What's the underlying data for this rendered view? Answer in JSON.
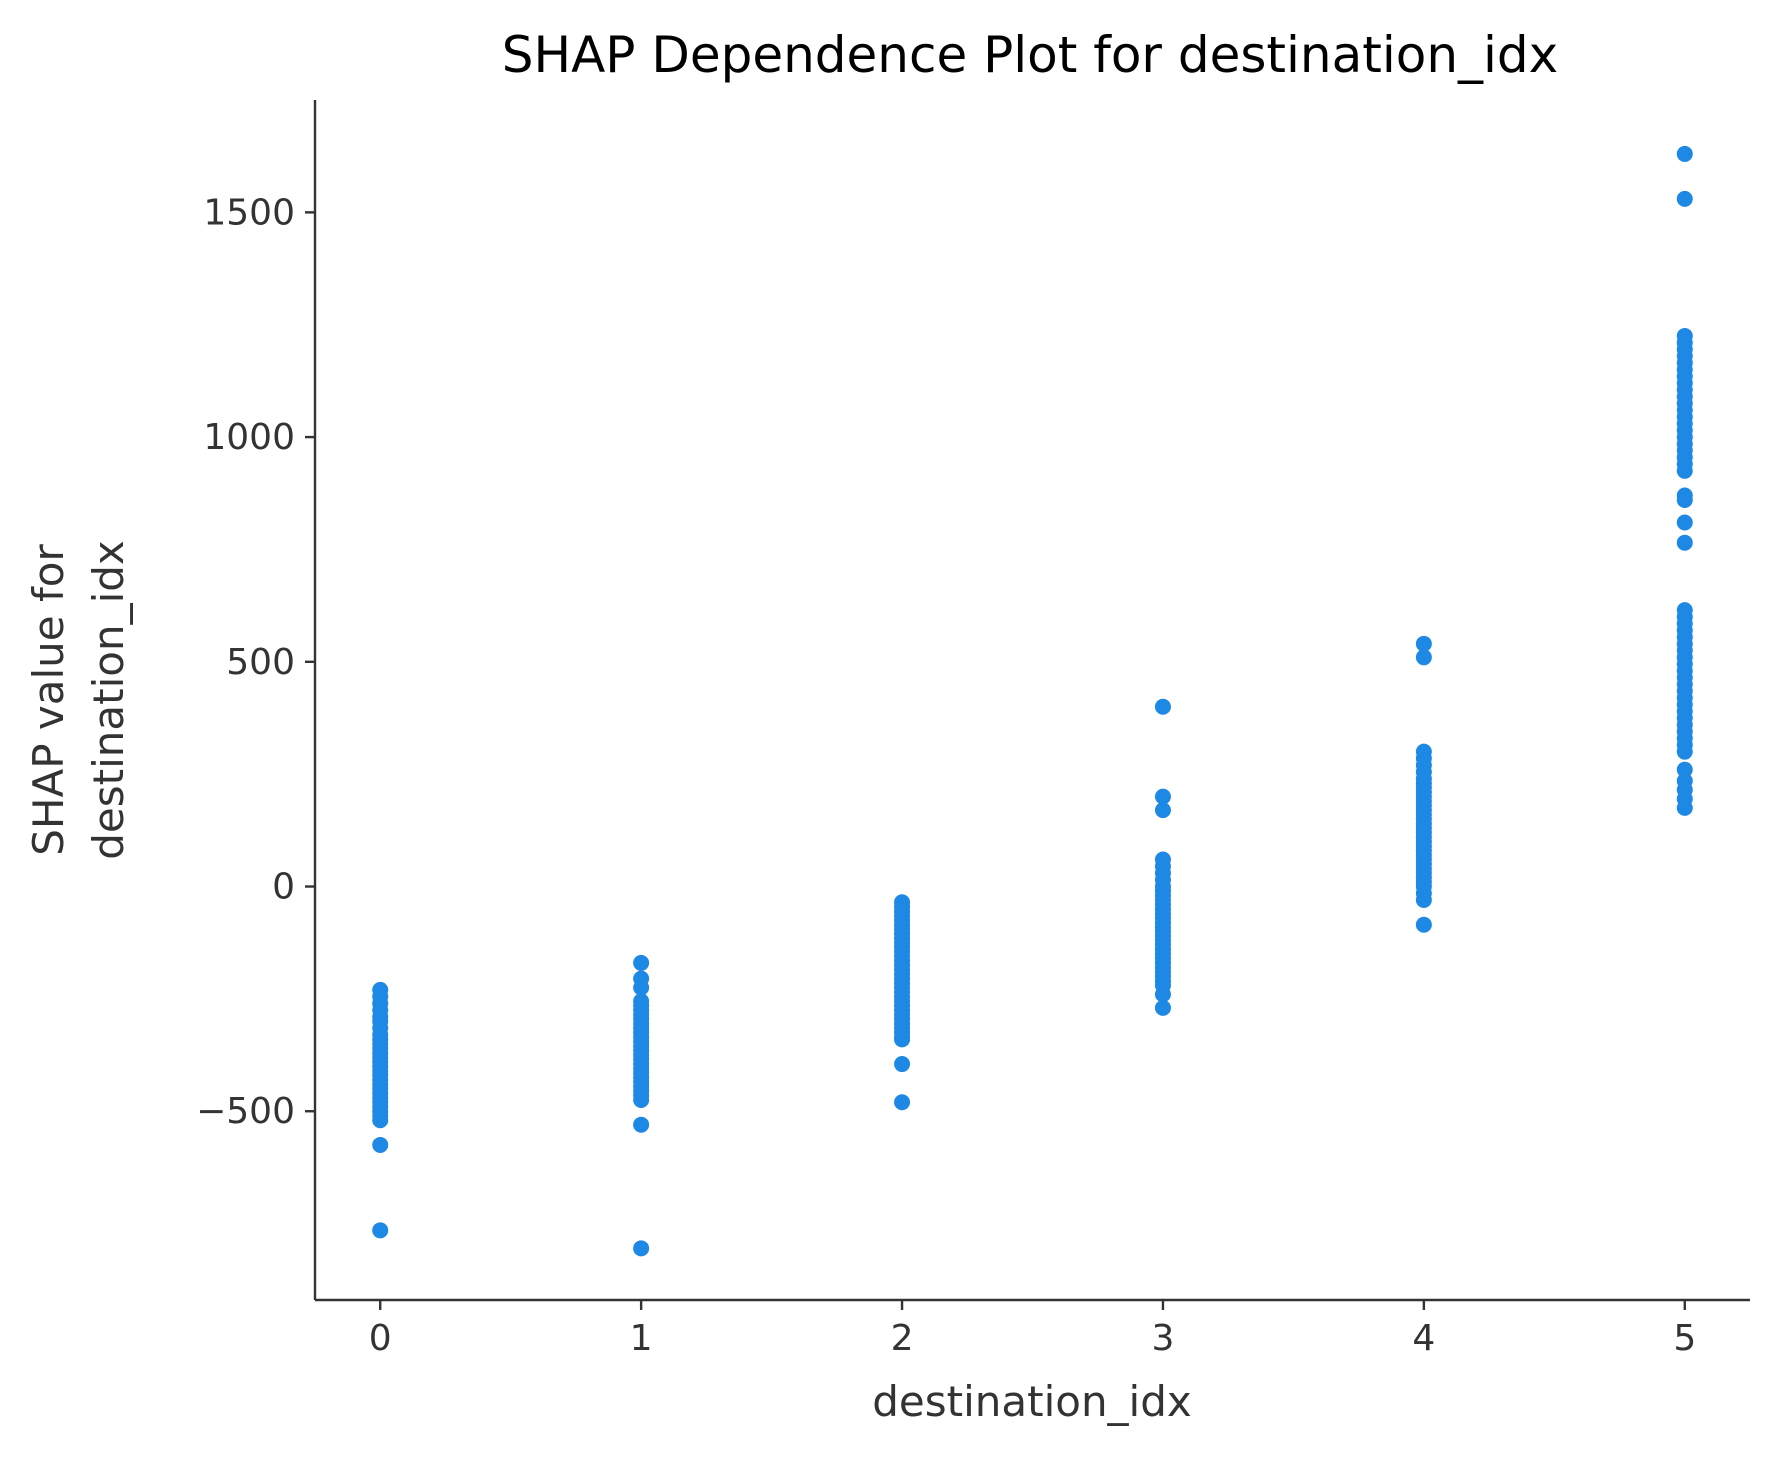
{
  "chart_data": {
    "type": "scatter",
    "title": "SHAP Dependence Plot for destination_idx",
    "xlabel": "destination_idx",
    "ylabel_lines": [
      "SHAP value for",
      "destination_idx"
    ],
    "xlim": [
      -0.25,
      5.25
    ],
    "ylim": [
      -920,
      1750
    ],
    "x_ticks": [
      0,
      1,
      2,
      3,
      4,
      5
    ],
    "x_tick_labels": [
      "0",
      "1",
      "2",
      "3",
      "4",
      "5"
    ],
    "y_ticks": [
      -500,
      0,
      500,
      1000,
      1500
    ],
    "y_tick_labels": [
      "−500",
      "0",
      "500",
      "1000",
      "1500"
    ],
    "grid": false,
    "point_color": "#1e88e5",
    "series": [
      {
        "points": [
          [
            0,
            -230
          ],
          [
            0,
            -245
          ],
          [
            0,
            -260
          ],
          [
            0,
            -275
          ],
          [
            0,
            -290
          ],
          [
            0,
            -300
          ],
          [
            0,
            -315
          ],
          [
            0,
            -330
          ],
          [
            0,
            -340
          ],
          [
            0,
            -350
          ],
          [
            0,
            -360
          ],
          [
            0,
            -370
          ],
          [
            0,
            -380
          ],
          [
            0,
            -390
          ],
          [
            0,
            -400
          ],
          [
            0,
            -410
          ],
          [
            0,
            -420
          ],
          [
            0,
            -430
          ],
          [
            0,
            -440
          ],
          [
            0,
            -450
          ],
          [
            0,
            -460
          ],
          [
            0,
            -470
          ],
          [
            0,
            -480
          ],
          [
            0,
            -490
          ],
          [
            0,
            -500
          ],
          [
            0,
            -510
          ],
          [
            0,
            -520
          ],
          [
            0,
            -575
          ],
          [
            0,
            -765
          ],
          [
            1,
            -170
          ],
          [
            1,
            -205
          ],
          [
            1,
            -225
          ],
          [
            1,
            -255
          ],
          [
            1,
            -265
          ],
          [
            1,
            -275
          ],
          [
            1,
            -285
          ],
          [
            1,
            -295
          ],
          [
            1,
            -305
          ],
          [
            1,
            -315
          ],
          [
            1,
            -325
          ],
          [
            1,
            -335
          ],
          [
            1,
            -345
          ],
          [
            1,
            -355
          ],
          [
            1,
            -365
          ],
          [
            1,
            -375
          ],
          [
            1,
            -385
          ],
          [
            1,
            -395
          ],
          [
            1,
            -405
          ],
          [
            1,
            -415
          ],
          [
            1,
            -425
          ],
          [
            1,
            -435
          ],
          [
            1,
            -445
          ],
          [
            1,
            -455
          ],
          [
            1,
            -465
          ],
          [
            1,
            -475
          ],
          [
            1,
            -530
          ],
          [
            1,
            -805
          ],
          [
            2,
            -35
          ],
          [
            2,
            -45
          ],
          [
            2,
            -55
          ],
          [
            2,
            -65
          ],
          [
            2,
            -75
          ],
          [
            2,
            -85
          ],
          [
            2,
            -95
          ],
          [
            2,
            -105
          ],
          [
            2,
            -115
          ],
          [
            2,
            -125
          ],
          [
            2,
            -135
          ],
          [
            2,
            -145
          ],
          [
            2,
            -155
          ],
          [
            2,
            -165
          ],
          [
            2,
            -175
          ],
          [
            2,
            -185
          ],
          [
            2,
            -195
          ],
          [
            2,
            -205
          ],
          [
            2,
            -215
          ],
          [
            2,
            -225
          ],
          [
            2,
            -235
          ],
          [
            2,
            -245
          ],
          [
            2,
            -255
          ],
          [
            2,
            -265
          ],
          [
            2,
            -275
          ],
          [
            2,
            -285
          ],
          [
            2,
            -295
          ],
          [
            2,
            -305
          ],
          [
            2,
            -315
          ],
          [
            2,
            -325
          ],
          [
            2,
            -335
          ],
          [
            2,
            -340
          ],
          [
            2,
            -395
          ],
          [
            2,
            -480
          ],
          [
            3,
            400
          ],
          [
            3,
            200
          ],
          [
            3,
            170
          ],
          [
            3,
            60
          ],
          [
            3,
            45
          ],
          [
            3,
            30
          ],
          [
            3,
            15
          ],
          [
            3,
            0
          ],
          [
            3,
            -10
          ],
          [
            3,
            -20
          ],
          [
            3,
            -30
          ],
          [
            3,
            -40
          ],
          [
            3,
            -50
          ],
          [
            3,
            -60
          ],
          [
            3,
            -70
          ],
          [
            3,
            -80
          ],
          [
            3,
            -90
          ],
          [
            3,
            -100
          ],
          [
            3,
            -110
          ],
          [
            3,
            -120
          ],
          [
            3,
            -130
          ],
          [
            3,
            -140
          ],
          [
            3,
            -150
          ],
          [
            3,
            -160
          ],
          [
            3,
            -170
          ],
          [
            3,
            -180
          ],
          [
            3,
            -190
          ],
          [
            3,
            -200
          ],
          [
            3,
            -210
          ],
          [
            3,
            -220
          ],
          [
            3,
            -240
          ],
          [
            3,
            -270
          ],
          [
            4,
            540
          ],
          [
            4,
            510
          ],
          [
            4,
            300
          ],
          [
            4,
            285
          ],
          [
            4,
            270
          ],
          [
            4,
            255
          ],
          [
            4,
            240
          ],
          [
            4,
            230
          ],
          [
            4,
            220
          ],
          [
            4,
            210
          ],
          [
            4,
            200
          ],
          [
            4,
            190
          ],
          [
            4,
            180
          ],
          [
            4,
            170
          ],
          [
            4,
            160
          ],
          [
            4,
            150
          ],
          [
            4,
            140
          ],
          [
            4,
            130
          ],
          [
            4,
            120
          ],
          [
            4,
            110
          ],
          [
            4,
            100
          ],
          [
            4,
            90
          ],
          [
            4,
            80
          ],
          [
            4,
            70
          ],
          [
            4,
            60
          ],
          [
            4,
            50
          ],
          [
            4,
            40
          ],
          [
            4,
            30
          ],
          [
            4,
            20
          ],
          [
            4,
            10
          ],
          [
            4,
            0
          ],
          [
            4,
            -15
          ],
          [
            4,
            -30
          ],
          [
            4,
            -85
          ],
          [
            5,
            1630
          ],
          [
            5,
            1530
          ],
          [
            5,
            1225
          ],
          [
            5,
            1210
          ],
          [
            5,
            1195
          ],
          [
            5,
            1180
          ],
          [
            5,
            1165
          ],
          [
            5,
            1150
          ],
          [
            5,
            1135
          ],
          [
            5,
            1120
          ],
          [
            5,
            1105
          ],
          [
            5,
            1090
          ],
          [
            5,
            1075
          ],
          [
            5,
            1060
          ],
          [
            5,
            1045
          ],
          [
            5,
            1030
          ],
          [
            5,
            1015
          ],
          [
            5,
            1000
          ],
          [
            5,
            985
          ],
          [
            5,
            970
          ],
          [
            5,
            955
          ],
          [
            5,
            940
          ],
          [
            5,
            925
          ],
          [
            5,
            870
          ],
          [
            5,
            860
          ],
          [
            5,
            810
          ],
          [
            5,
            765
          ],
          [
            5,
            615
          ],
          [
            5,
            600
          ],
          [
            5,
            585
          ],
          [
            5,
            570
          ],
          [
            5,
            555
          ],
          [
            5,
            540
          ],
          [
            5,
            525
          ],
          [
            5,
            510
          ],
          [
            5,
            495
          ],
          [
            5,
            480
          ],
          [
            5,
            465
          ],
          [
            5,
            450
          ],
          [
            5,
            435
          ],
          [
            5,
            420
          ],
          [
            5,
            405
          ],
          [
            5,
            390
          ],
          [
            5,
            375
          ],
          [
            5,
            360
          ],
          [
            5,
            345
          ],
          [
            5,
            330
          ],
          [
            5,
            315
          ],
          [
            5,
            300
          ],
          [
            5,
            260
          ],
          [
            5,
            235
          ],
          [
            5,
            215
          ],
          [
            5,
            195
          ],
          [
            5,
            175
          ]
        ]
      }
    ]
  }
}
